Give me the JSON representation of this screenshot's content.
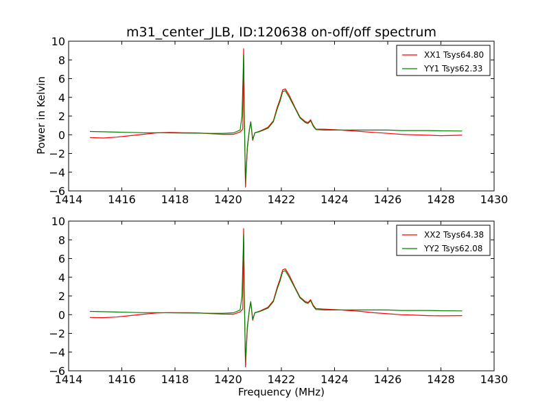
{
  "chart_data": {
    "title": "m31_center_JLB, ID:120638 on-off/off spectrum",
    "xlabel": "Frequency (MHz)",
    "ylabel": "Power in Kelvin",
    "panels": [
      {
        "type": "line",
        "xlim": [
          1414,
          1430
        ],
        "ylim": [
          -6,
          10
        ],
        "xticks": [
          "1414",
          "1416",
          "1418",
          "1420",
          "1422",
          "1424",
          "1426",
          "1428",
          "1430"
        ],
        "yticks": [
          "−6",
          "−4",
          "−2",
          "0",
          "2",
          "4",
          "6",
          "8",
          "10"
        ],
        "legend_position": "top-right",
        "series": [
          {
            "name": "XX1 Tsys64.80",
            "color": "#ff0000",
            "points": [
              [
                1414.8,
                -0.3
              ],
              [
                1415.3,
                -0.35
              ],
              [
                1415.8,
                -0.25
              ],
              [
                1416.3,
                -0.1
              ],
              [
                1416.8,
                0.05
              ],
              [
                1417.3,
                0.2
              ],
              [
                1417.8,
                0.25
              ],
              [
                1418.3,
                0.22
              ],
              [
                1418.8,
                0.2
              ],
              [
                1419.3,
                0.12
              ],
              [
                1419.8,
                0.05
              ],
              [
                1420.2,
                0.05
              ],
              [
                1420.45,
                0.3
              ],
              [
                1420.55,
                0.6
              ],
              [
                1420.58,
                9.2
              ],
              [
                1420.61,
                2.0
              ],
              [
                1420.65,
                -5.6
              ],
              [
                1420.72,
                -1.5
              ],
              [
                1420.8,
                0.6
              ],
              [
                1420.85,
                1.3
              ],
              [
                1420.92,
                -0.6
              ],
              [
                1421.0,
                0.2
              ],
              [
                1421.2,
                0.4
              ],
              [
                1421.5,
                0.8
              ],
              [
                1421.7,
                1.5
              ],
              [
                1421.85,
                3.0
              ],
              [
                1421.95,
                3.8
              ],
              [
                1422.05,
                4.8
              ],
              [
                1422.15,
                4.9
              ],
              [
                1422.3,
                4.2
              ],
              [
                1422.5,
                3.0
              ],
              [
                1422.7,
                1.9
              ],
              [
                1422.9,
                1.4
              ],
              [
                1423.0,
                1.3
              ],
              [
                1423.1,
                1.6
              ],
              [
                1423.2,
                1.0
              ],
              [
                1423.3,
                0.6
              ],
              [
                1423.6,
                0.6
              ],
              [
                1424.0,
                0.55
              ],
              [
                1424.5,
                0.45
              ],
              [
                1425.0,
                0.35
              ],
              [
                1425.5,
                0.25
              ],
              [
                1426.0,
                0.15
              ],
              [
                1426.5,
                0.05
              ],
              [
                1427.0,
                0.0
              ],
              [
                1427.5,
                -0.05
              ],
              [
                1428.0,
                -0.1
              ],
              [
                1428.8,
                -0.05
              ]
            ]
          },
          {
            "name": "YY1 Tsys62.33",
            "color": "#008000",
            "points": [
              [
                1414.8,
                0.35
              ],
              [
                1415.3,
                0.32
              ],
              [
                1415.8,
                0.28
              ],
              [
                1416.3,
                0.25
              ],
              [
                1416.8,
                0.22
              ],
              [
                1417.3,
                0.22
              ],
              [
                1417.8,
                0.2
              ],
              [
                1418.3,
                0.18
              ],
              [
                1418.8,
                0.17
              ],
              [
                1419.3,
                0.15
              ],
              [
                1419.8,
                0.15
              ],
              [
                1420.2,
                0.2
              ],
              [
                1420.45,
                0.5
              ],
              [
                1420.52,
                2.0
              ],
              [
                1420.58,
                8.6
              ],
              [
                1420.61,
                1.5
              ],
              [
                1420.65,
                -5.1
              ],
              [
                1420.72,
                -1.3
              ],
              [
                1420.8,
                0.6
              ],
              [
                1420.85,
                1.4
              ],
              [
                1420.92,
                -0.5
              ],
              [
                1421.0,
                0.2
              ],
              [
                1421.2,
                0.35
              ],
              [
                1421.5,
                0.7
              ],
              [
                1421.7,
                1.4
              ],
              [
                1421.85,
                2.8
              ],
              [
                1421.95,
                3.6
              ],
              [
                1422.05,
                4.6
              ],
              [
                1422.15,
                4.7
              ],
              [
                1422.3,
                4.0
              ],
              [
                1422.5,
                2.9
              ],
              [
                1422.7,
                1.8
              ],
              [
                1422.9,
                1.3
              ],
              [
                1423.0,
                1.2
              ],
              [
                1423.1,
                1.5
              ],
              [
                1423.2,
                0.9
              ],
              [
                1423.3,
                0.55
              ],
              [
                1423.6,
                0.5
              ],
              [
                1424.0,
                0.5
              ],
              [
                1424.5,
                0.5
              ],
              [
                1425.0,
                0.5
              ],
              [
                1425.5,
                0.5
              ],
              [
                1426.0,
                0.5
              ],
              [
                1426.5,
                0.45
              ],
              [
                1427.0,
                0.45
              ],
              [
                1427.5,
                0.45
              ],
              [
                1428.0,
                0.42
              ],
              [
                1428.8,
                0.4
              ]
            ]
          }
        ]
      },
      {
        "type": "line",
        "xlim": [
          1414,
          1430
        ],
        "ylim": [
          -6,
          10
        ],
        "xticks": [
          "1414",
          "1416",
          "1418",
          "1420",
          "1422",
          "1424",
          "1426",
          "1428",
          "1430"
        ],
        "yticks": [
          "−6",
          "−4",
          "−2",
          "0",
          "2",
          "4",
          "6",
          "8",
          "10"
        ],
        "legend_position": "top-right",
        "series": [
          {
            "name": "XX2 Tsys64.38",
            "color": "#ff0000",
            "points": [
              [
                1414.8,
                -0.3
              ],
              [
                1415.3,
                -0.32
              ],
              [
                1415.8,
                -0.25
              ],
              [
                1416.3,
                -0.1
              ],
              [
                1416.8,
                0.05
              ],
              [
                1417.3,
                0.18
              ],
              [
                1417.8,
                0.22
              ],
              [
                1418.3,
                0.22
              ],
              [
                1418.8,
                0.2
              ],
              [
                1419.3,
                0.12
              ],
              [
                1419.8,
                0.06
              ],
              [
                1420.2,
                0.05
              ],
              [
                1420.45,
                0.3
              ],
              [
                1420.55,
                0.6
              ],
              [
                1420.58,
                9.2
              ],
              [
                1420.61,
                2.0
              ],
              [
                1420.65,
                -5.6
              ],
              [
                1420.72,
                -1.5
              ],
              [
                1420.8,
                0.6
              ],
              [
                1420.85,
                1.3
              ],
              [
                1420.92,
                -0.6
              ],
              [
                1421.0,
                0.2
              ],
              [
                1421.2,
                0.4
              ],
              [
                1421.5,
                0.8
              ],
              [
                1421.7,
                1.5
              ],
              [
                1421.85,
                3.0
              ],
              [
                1421.95,
                3.8
              ],
              [
                1422.05,
                4.8
              ],
              [
                1422.15,
                4.9
              ],
              [
                1422.3,
                4.2
              ],
              [
                1422.5,
                3.0
              ],
              [
                1422.7,
                1.9
              ],
              [
                1422.9,
                1.4
              ],
              [
                1423.0,
                1.3
              ],
              [
                1423.1,
                1.6
              ],
              [
                1423.2,
                1.0
              ],
              [
                1423.3,
                0.65
              ],
              [
                1423.6,
                0.6
              ],
              [
                1424.0,
                0.55
              ],
              [
                1424.5,
                0.45
              ],
              [
                1425.0,
                0.35
              ],
              [
                1425.5,
                0.2
              ],
              [
                1426.0,
                0.1
              ],
              [
                1426.5,
                0.0
              ],
              [
                1427.0,
                -0.05
              ],
              [
                1427.5,
                -0.1
              ],
              [
                1428.0,
                -0.12
              ],
              [
                1428.8,
                -0.1
              ]
            ]
          },
          {
            "name": "YY2 Tsys62.08",
            "color": "#008000",
            "points": [
              [
                1414.8,
                0.35
              ],
              [
                1415.3,
                0.32
              ],
              [
                1415.8,
                0.28
              ],
              [
                1416.3,
                0.25
              ],
              [
                1416.8,
                0.22
              ],
              [
                1417.3,
                0.22
              ],
              [
                1417.8,
                0.2
              ],
              [
                1418.3,
                0.18
              ],
              [
                1418.8,
                0.17
              ],
              [
                1419.3,
                0.15
              ],
              [
                1419.8,
                0.15
              ],
              [
                1420.2,
                0.2
              ],
              [
                1420.45,
                0.5
              ],
              [
                1420.52,
                2.0
              ],
              [
                1420.58,
                8.6
              ],
              [
                1420.61,
                1.5
              ],
              [
                1420.65,
                -5.1
              ],
              [
                1420.72,
                -1.3
              ],
              [
                1420.8,
                0.6
              ],
              [
                1420.85,
                1.4
              ],
              [
                1420.92,
                -0.5
              ],
              [
                1421.0,
                0.2
              ],
              [
                1421.2,
                0.35
              ],
              [
                1421.5,
                0.7
              ],
              [
                1421.7,
                1.4
              ],
              [
                1421.85,
                2.8
              ],
              [
                1421.95,
                3.6
              ],
              [
                1422.05,
                4.6
              ],
              [
                1422.15,
                4.7
              ],
              [
                1422.3,
                4.0
              ],
              [
                1422.5,
                2.9
              ],
              [
                1422.7,
                1.8
              ],
              [
                1422.9,
                1.3
              ],
              [
                1423.0,
                1.2
              ],
              [
                1423.1,
                1.5
              ],
              [
                1423.2,
                0.9
              ],
              [
                1423.3,
                0.55
              ],
              [
                1423.6,
                0.5
              ],
              [
                1424.0,
                0.5
              ],
              [
                1424.5,
                0.5
              ],
              [
                1425.0,
                0.5
              ],
              [
                1425.5,
                0.5
              ],
              [
                1426.0,
                0.5
              ],
              [
                1426.5,
                0.45
              ],
              [
                1427.0,
                0.45
              ],
              [
                1427.5,
                0.45
              ],
              [
                1428.0,
                0.42
              ],
              [
                1428.8,
                0.4
              ]
            ]
          }
        ]
      }
    ]
  }
}
